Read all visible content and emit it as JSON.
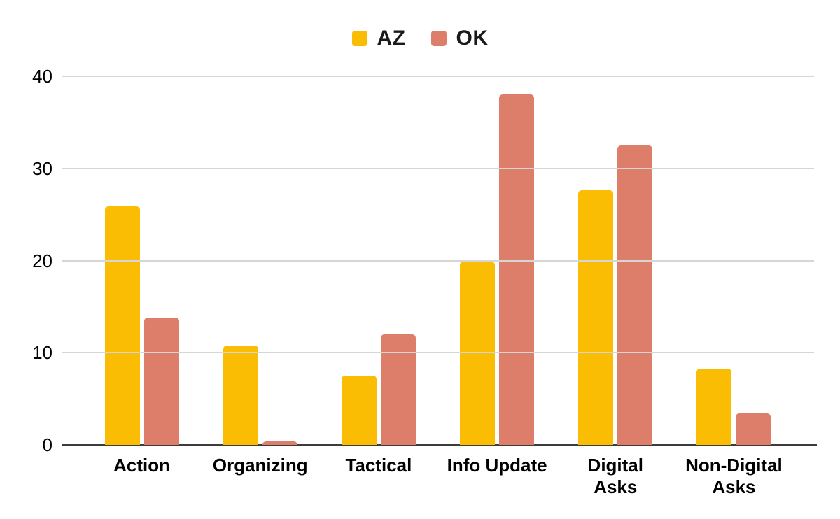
{
  "chart_data": {
    "type": "bar",
    "title": "",
    "xlabel": "",
    "ylabel": "",
    "categories": [
      "Action",
      "Organizing",
      "Tactical",
      "Info Update",
      "Digital Asks",
      "Non-Digital Asks"
    ],
    "category_display_labels": [
      "Action",
      "Organizing",
      "Tactical",
      "Info Update",
      "Digital\nAsks",
      "Non-Digital\nAsks"
    ],
    "series": [
      {
        "name": "AZ",
        "color": "#FBBC04",
        "values": [
          25.9,
          10.8,
          7.5,
          19.9,
          27.6,
          8.3
        ]
      },
      {
        "name": "OK",
        "color": "#DD7E6B",
        "values": [
          13.8,
          0.4,
          12.0,
          38.0,
          32.5,
          3.4
        ]
      }
    ],
    "ylim": [
      0,
      40
    ],
    "yticks": [
      0,
      10,
      20,
      30,
      40
    ],
    "grid": true,
    "legend_position": "top-center"
  },
  "legend": {
    "items": [
      {
        "label": "AZ"
      },
      {
        "label": "OK"
      }
    ]
  },
  "colors": {
    "background": "#ffffff",
    "grid_line": "#d6d6d6",
    "axis_line": "#3c3c3c",
    "text": "#000000",
    "legend_text": "#1a1a1a",
    "series_az": "#FBBC04",
    "series_ok": "#DD7E6B"
  }
}
